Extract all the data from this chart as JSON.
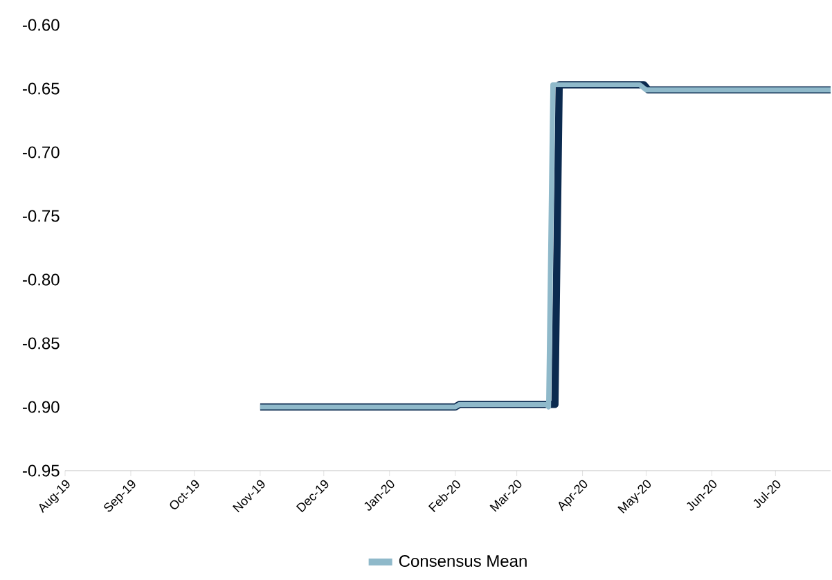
{
  "chart_data": {
    "type": "line",
    "xlim": [
      "2019-08-01",
      "2020-07-27"
    ],
    "xticks": [
      {
        "value": "2019-08-01",
        "label": "Aug-19"
      },
      {
        "value": "2019-09-01",
        "label": "Sep-19"
      },
      {
        "value": "2019-10-01",
        "label": "Oct-19"
      },
      {
        "value": "2019-11-01",
        "label": "Nov-19"
      },
      {
        "value": "2019-12-01",
        "label": "Dec-19"
      },
      {
        "value": "2020-01-01",
        "label": "Jan-20"
      },
      {
        "value": "2020-02-01",
        "label": "Feb-20"
      },
      {
        "value": "2020-03-01",
        "label": "Mar-20"
      },
      {
        "value": "2020-04-01",
        "label": "Apr-20"
      },
      {
        "value": "2020-05-01",
        "label": "May-20"
      },
      {
        "value": "2020-06-01",
        "label": "Jun-20"
      },
      {
        "value": "2020-07-01",
        "label": "Jul-20"
      }
    ],
    "ylim": [
      -0.95,
      -0.6
    ],
    "yticks": [
      {
        "value": -0.95,
        "label": "-0.95"
      },
      {
        "value": -0.9,
        "label": "-0.90"
      },
      {
        "value": -0.85,
        "label": "-0.85"
      },
      {
        "value": -0.8,
        "label": "-0.80"
      },
      {
        "value": -0.75,
        "label": "-0.75"
      },
      {
        "value": -0.7,
        "label": "-0.70"
      },
      {
        "value": -0.65,
        "label": "-0.65"
      },
      {
        "value": -0.6,
        "label": "-0.60"
      }
    ],
    "legend": "bottom",
    "series": [
      {
        "color": "#0b2a4f",
        "x": [
          "2019-11-01",
          "2020-02-01",
          "2020-02-03",
          "2020-03-19",
          "2020-03-21",
          "2020-04-30",
          "2020-05-02",
          "2020-07-27"
        ],
        "values": [
          -0.9,
          -0.9,
          -0.898,
          -0.898,
          -0.647,
          -0.647,
          -0.651,
          -0.651
        ]
      },
      {
        "name": "Consensus Mean",
        "color": "#8fb9ca",
        "x": [
          "2019-11-01",
          "2020-02-01",
          "2020-02-03",
          "2020-03-15",
          "2020-03-16",
          "2020-03-18",
          "2020-04-28",
          "2020-05-01",
          "2020-07-27"
        ],
        "values": [
          -0.9,
          -0.9,
          -0.898,
          -0.898,
          -0.9,
          -0.647,
          -0.647,
          -0.651,
          -0.651
        ]
      }
    ]
  }
}
